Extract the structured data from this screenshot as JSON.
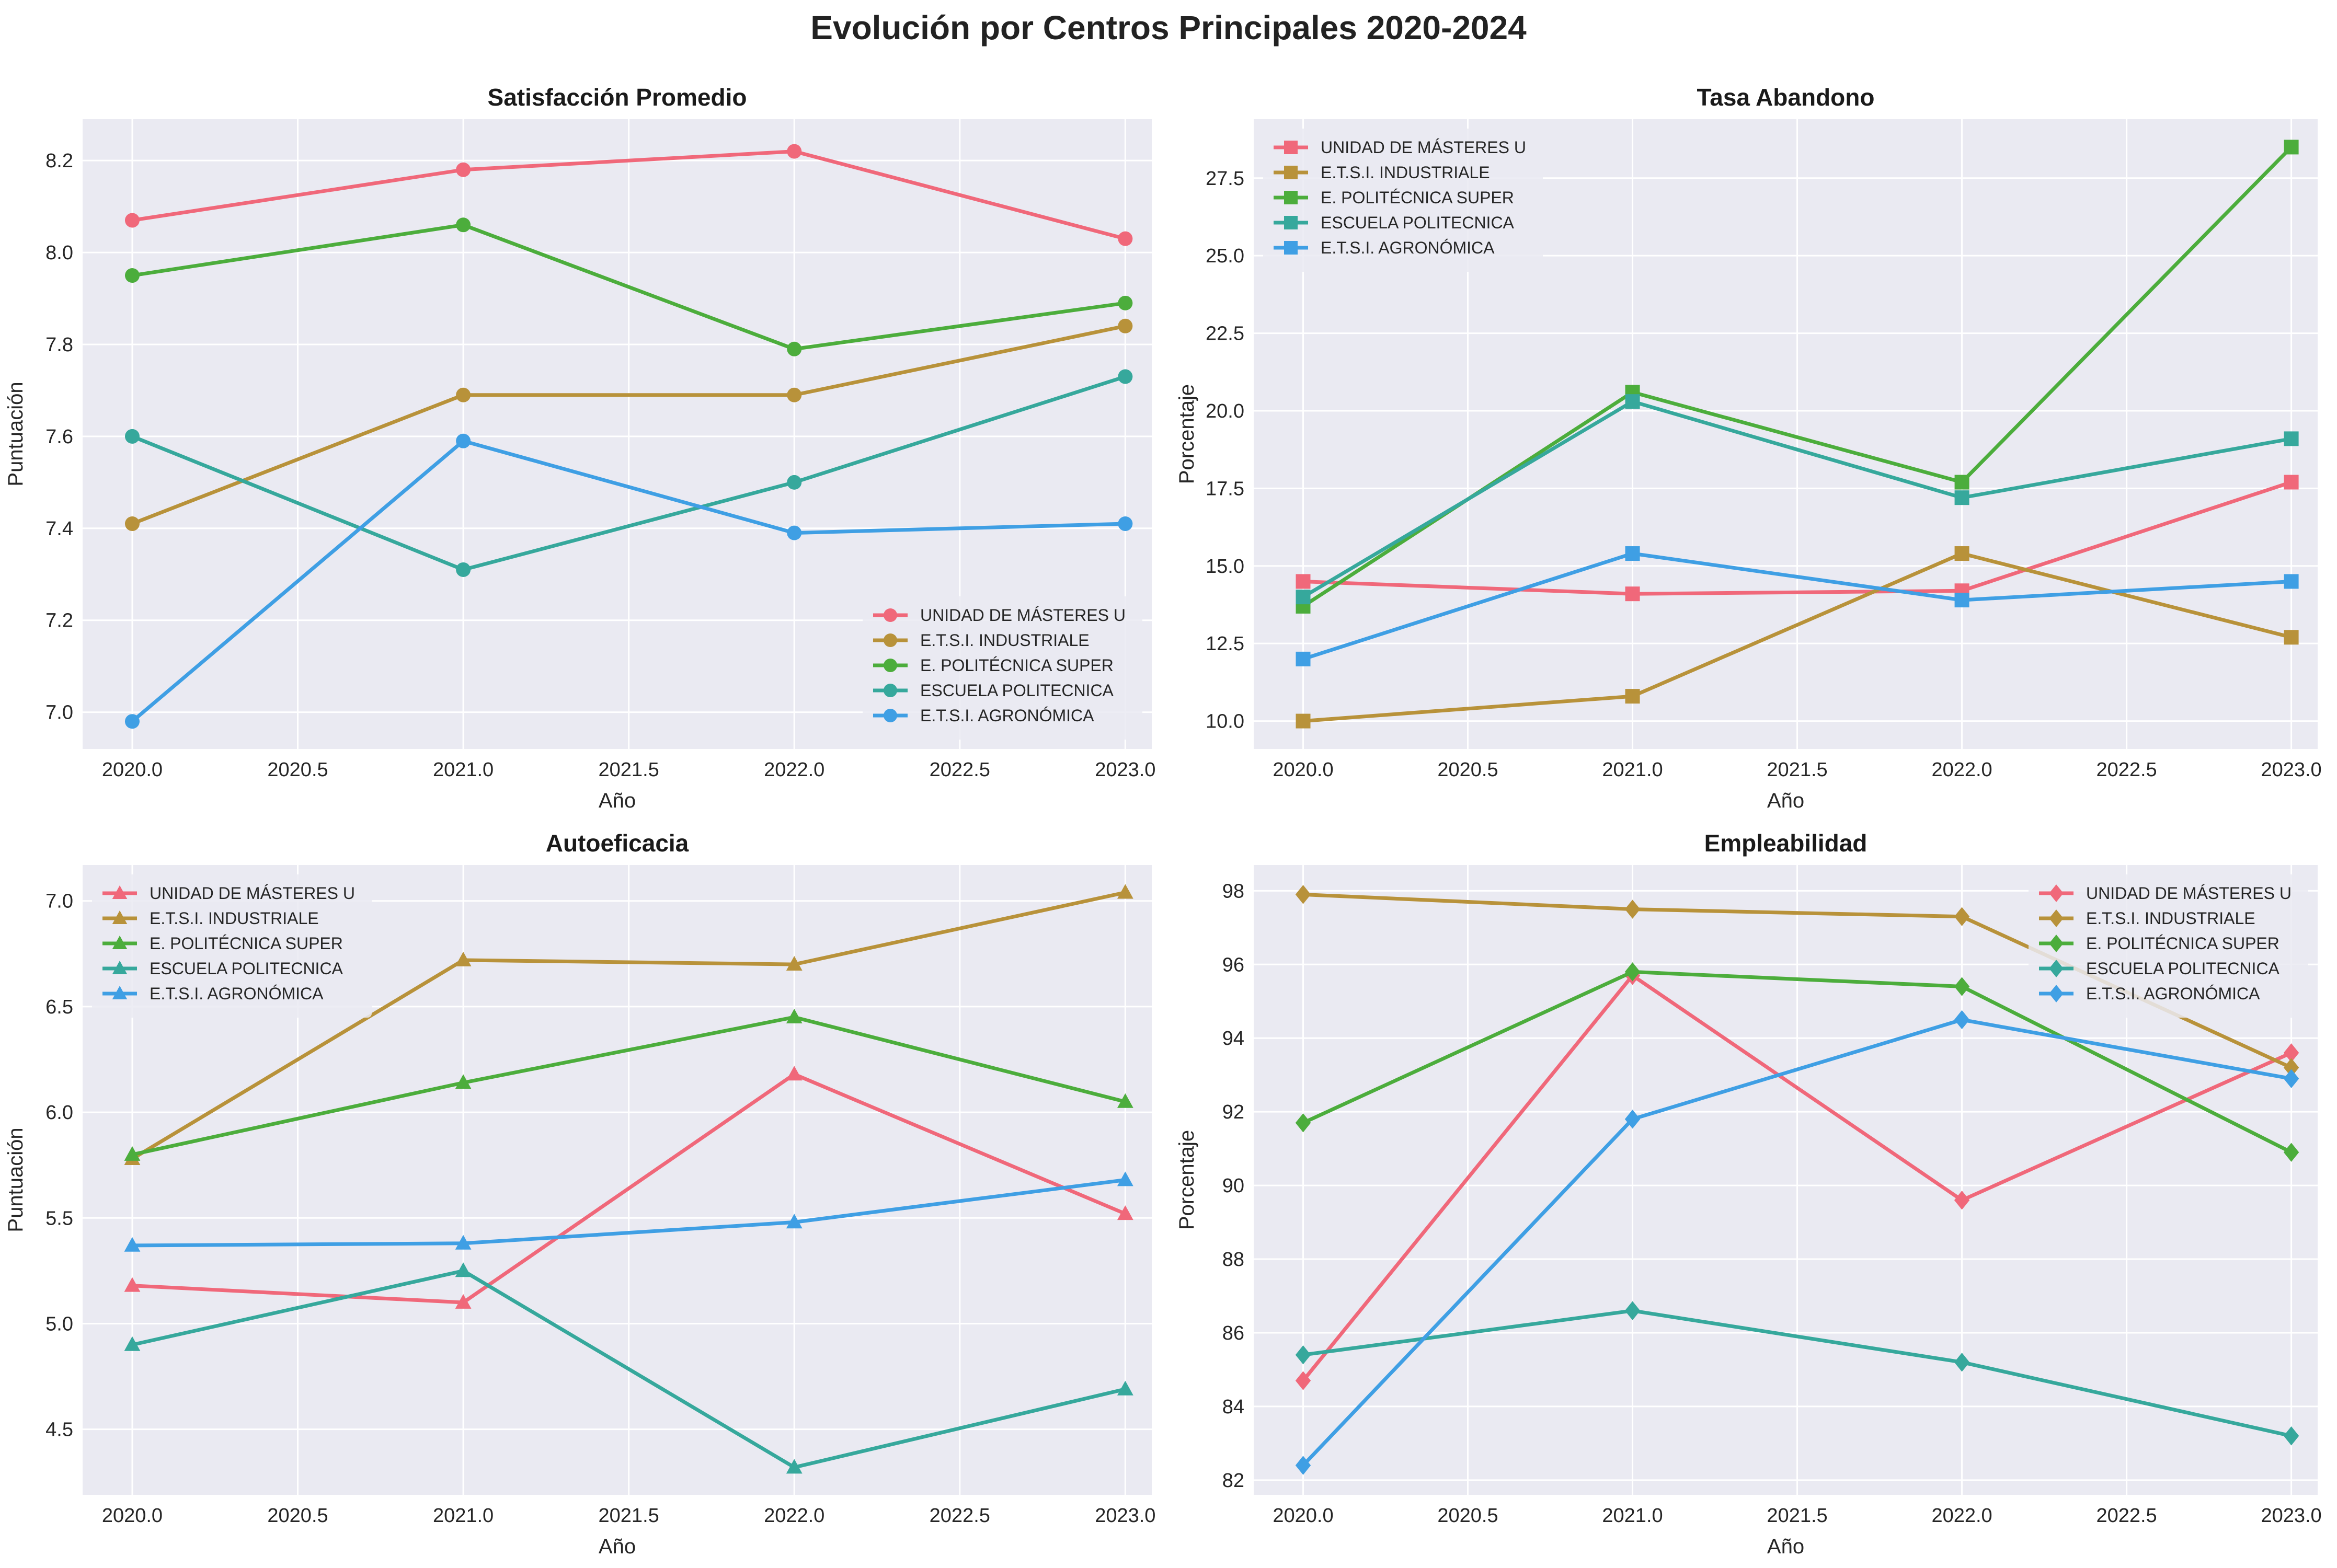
{
  "suptitle": "Evolución por Centros Principales 2020-2024",
  "colors": [
    "#f0687a",
    "#b8923a",
    "#4cad3c",
    "#36a89c",
    "#3f9fe4"
  ],
  "chart_data": [
    {
      "type": "line",
      "title": "Satisfacción Promedio",
      "xlabel": "Año",
      "ylabel": "Puntuación",
      "marker": "circle",
      "legend": "lower-right",
      "grid": true,
      "xlim": [
        2019.85,
        2023.08
      ],
      "ylim": [
        6.92,
        8.29
      ],
      "xticks": [
        2020.0,
        2020.5,
        2021.0,
        2021.5,
        2022.0,
        2022.5,
        2023.0
      ],
      "xtick_labels": [
        "2020.0",
        "2020.5",
        "2021.0",
        "2021.5",
        "2022.0",
        "2022.5",
        "2023.0"
      ],
      "yticks": [
        7.0,
        7.2,
        7.4,
        7.6,
        7.8,
        8.0,
        8.2
      ],
      "ytick_labels": [
        "7.0",
        "7.2",
        "7.4",
        "7.6",
        "7.8",
        "8.0",
        "8.2"
      ],
      "x": [
        2020,
        2021,
        2022,
        2023
      ],
      "series": [
        {
          "name": "UNIDAD DE MÁSTERES U",
          "values": [
            8.07,
            8.18,
            8.22,
            8.03
          ]
        },
        {
          "name": "E.T.S.I. INDUSTRIALE",
          "values": [
            7.41,
            7.69,
            7.69,
            7.84
          ]
        },
        {
          "name": "E. POLITÉCNICA SUPER",
          "values": [
            7.95,
            8.06,
            7.79,
            7.89
          ]
        },
        {
          "name": "ESCUELA POLITECNICA",
          "values": [
            7.6,
            7.31,
            7.5,
            7.73
          ]
        },
        {
          "name": "E.T.S.I. AGRONÓMICA",
          "values": [
            6.98,
            7.59,
            7.39,
            7.41
          ]
        }
      ]
    },
    {
      "type": "line",
      "title": "Tasa Abandono",
      "xlabel": "Año",
      "ylabel": "Porcentaje",
      "marker": "square",
      "legend": "upper-left",
      "grid": true,
      "xlim": [
        2019.85,
        2023.08
      ],
      "ylim": [
        9.1,
        29.4
      ],
      "xticks": [
        2020.0,
        2020.5,
        2021.0,
        2021.5,
        2022.0,
        2022.5,
        2023.0
      ],
      "xtick_labels": [
        "2020.0",
        "2020.5",
        "2021.0",
        "2021.5",
        "2022.0",
        "2022.5",
        "2023.0"
      ],
      "yticks": [
        10.0,
        12.5,
        15.0,
        17.5,
        20.0,
        22.5,
        25.0,
        27.5
      ],
      "ytick_labels": [
        "10.0",
        "12.5",
        "15.0",
        "17.5",
        "20.0",
        "22.5",
        "25.0",
        "27.5"
      ],
      "x": [
        2020,
        2021,
        2022,
        2023
      ],
      "series": [
        {
          "name": "UNIDAD DE MÁSTERES U",
          "values": [
            14.5,
            14.1,
            14.2,
            17.7
          ]
        },
        {
          "name": "E.T.S.I. INDUSTRIALE",
          "values": [
            10.0,
            10.8,
            15.4,
            12.7
          ]
        },
        {
          "name": "E. POLITÉCNICA SUPER",
          "values": [
            13.7,
            20.6,
            17.7,
            28.5
          ]
        },
        {
          "name": "ESCUELA POLITECNICA",
          "values": [
            14.0,
            20.3,
            17.2,
            19.1
          ]
        },
        {
          "name": "E.T.S.I. AGRONÓMICA",
          "values": [
            12.0,
            15.4,
            13.9,
            14.5
          ]
        }
      ]
    },
    {
      "type": "line",
      "title": "Autoeficacia",
      "xlabel": "Año",
      "ylabel": "Puntuación",
      "marker": "triangle",
      "legend": "upper-left",
      "grid": true,
      "xlim": [
        2019.85,
        2023.08
      ],
      "ylim": [
        4.19,
        7.17
      ],
      "xticks": [
        2020.0,
        2020.5,
        2021.0,
        2021.5,
        2022.0,
        2022.5,
        2023.0
      ],
      "xtick_labels": [
        "2020.0",
        "2020.5",
        "2021.0",
        "2021.5",
        "2022.0",
        "2022.5",
        "2023.0"
      ],
      "yticks": [
        4.5,
        5.0,
        5.5,
        6.0,
        6.5,
        7.0
      ],
      "ytick_labels": [
        "4.5",
        "5.0",
        "5.5",
        "6.0",
        "6.5",
        "7.0"
      ],
      "x": [
        2020,
        2021,
        2022,
        2023
      ],
      "series": [
        {
          "name": "UNIDAD DE MÁSTERES U",
          "values": [
            5.18,
            5.1,
            6.18,
            5.52
          ]
        },
        {
          "name": "E.T.S.I. INDUSTRIALE",
          "values": [
            5.78,
            6.72,
            6.7,
            7.04
          ]
        },
        {
          "name": "E. POLITÉCNICA SUPER",
          "values": [
            5.8,
            6.14,
            6.45,
            6.05
          ]
        },
        {
          "name": "ESCUELA POLITECNICA",
          "values": [
            4.9,
            5.25,
            4.32,
            4.69
          ]
        },
        {
          "name": "E.T.S.I. AGRONÓMICA",
          "values": [
            5.37,
            5.38,
            5.48,
            5.68
          ]
        }
      ]
    },
    {
      "type": "line",
      "title": "Empleabilidad",
      "xlabel": "Año",
      "ylabel": "Porcentaje",
      "marker": "diamond",
      "legend": "upper-right",
      "grid": true,
      "xlim": [
        2019.85,
        2023.08
      ],
      "ylim": [
        81.6,
        98.7
      ],
      "xticks": [
        2020.0,
        2020.5,
        2021.0,
        2021.5,
        2022.0,
        2022.5,
        2023.0
      ],
      "xtick_labels": [
        "2020.0",
        "2020.5",
        "2021.0",
        "2021.5",
        "2022.0",
        "2022.5",
        "2023.0"
      ],
      "yticks": [
        82,
        84,
        86,
        88,
        90,
        92,
        94,
        96,
        98
      ],
      "ytick_labels": [
        "82",
        "84",
        "86",
        "88",
        "90",
        "92",
        "94",
        "96",
        "98"
      ],
      "x": [
        2020,
        2021,
        2022,
        2023
      ],
      "series": [
        {
          "name": "UNIDAD DE MÁSTERES U",
          "values": [
            84.7,
            95.7,
            89.6,
            93.6
          ]
        },
        {
          "name": "E.T.S.I. INDUSTRIALE",
          "values": [
            97.9,
            97.5,
            97.3,
            93.2
          ]
        },
        {
          "name": "E. POLITÉCNICA SUPER",
          "values": [
            91.7,
            95.8,
            95.4,
            90.9
          ]
        },
        {
          "name": "ESCUELA POLITECNICA",
          "values": [
            85.4,
            86.6,
            85.2,
            83.2
          ]
        },
        {
          "name": "E.T.S.I. AGRONÓMICA",
          "values": [
            82.4,
            91.8,
            94.5,
            92.9
          ]
        }
      ]
    }
  ]
}
